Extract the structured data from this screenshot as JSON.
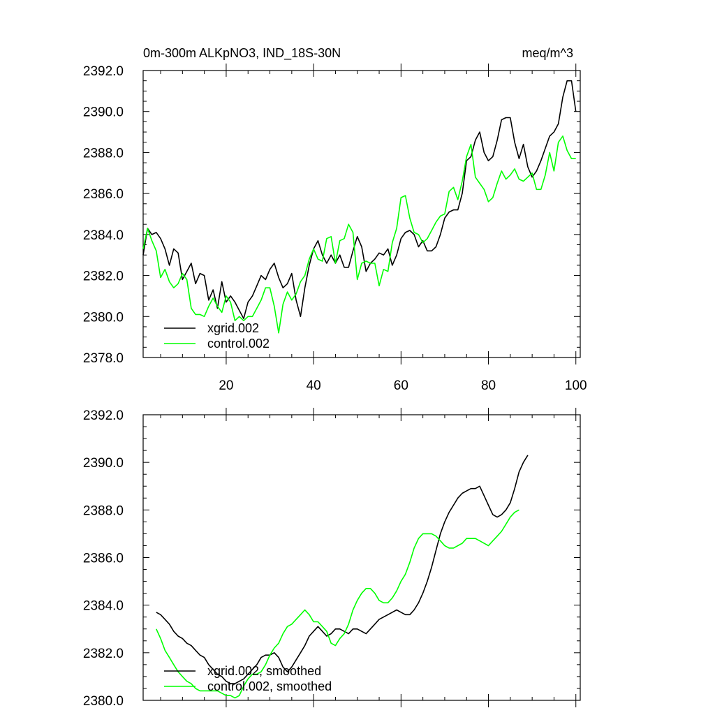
{
  "figure": {
    "title_left": "0m-300m ALKpNO3, IND_18S-30N",
    "title_right": "meq/m^3"
  },
  "colors": {
    "xgrid": "#000000",
    "control": "#00ff00",
    "axis": "#000000"
  },
  "chart_data": [
    {
      "type": "line",
      "title": "0m-300m ALKpNO3, IND_18S-30N",
      "units": "meq/m^3",
      "xlim": [
        1,
        101
      ],
      "ylim": [
        2378,
        2392
      ],
      "xticks": [
        20,
        40,
        60,
        80,
        100
      ],
      "xtick_labels": [
        "20",
        "40",
        "60",
        "80",
        "100"
      ],
      "yticks": [
        2378,
        2380,
        2382,
        2384,
        2386,
        2388,
        2390,
        2392
      ],
      "ytick_labels": [
        "2378.0",
        "2380.0",
        "2382.0",
        "2384.0",
        "2386.0",
        "2388.0",
        "2390.0",
        "2392.0"
      ],
      "legend_position": "bottom-left",
      "x_start": 1,
      "series": [
        {
          "name": "xgrid.002",
          "color": "#000000",
          "values": [
            2383.0,
            2384.3,
            2384.0,
            2384.1,
            2383.8,
            2383.3,
            2382.5,
            2383.3,
            2383.1,
            2381.8,
            2382.2,
            2382.6,
            2381.6,
            2382.1,
            2382.0,
            2380.8,
            2381.3,
            2380.4,
            2381.7,
            2380.7,
            2381.0,
            2380.7,
            2380.3,
            2379.9,
            2380.7,
            2381.0,
            2381.5,
            2382.0,
            2381.8,
            2382.3,
            2382.6,
            2381.9,
            2381.4,
            2381.6,
            2382.1,
            2380.8,
            2380.0,
            2381.4,
            2382.5,
            2383.3,
            2383.7,
            2383.0,
            2382.6,
            2383.0,
            2382.6,
            2383.0,
            2382.4,
            2382.4,
            2383.2,
            2383.9,
            2383.4,
            2382.2,
            2382.6,
            2382.8,
            2383.1,
            2383.0,
            2383.3,
            2382.5,
            2383.0,
            2383.8,
            2384.1,
            2384.2,
            2384.0,
            2383.4,
            2383.7,
            2383.2,
            2383.2,
            2383.4,
            2384.0,
            2384.8,
            2385.1,
            2385.2,
            2385.2,
            2386.0,
            2387.6,
            2387.8,
            2388.6,
            2389.0,
            2388.0,
            2387.6,
            2387.8,
            2388.6,
            2389.6,
            2389.7,
            2389.7,
            2388.5,
            2387.7,
            2388.4,
            2387.3,
            2386.8,
            2387.1,
            2387.6,
            2388.2,
            2388.8,
            2389.0,
            2389.4,
            2390.7,
            2391.5,
            2391.5,
            2390.0
          ]
        },
        {
          "name": "control.002",
          "color": "#00ff00",
          "values": [
            2383.3,
            2384.3,
            2383.7,
            2383.2,
            2381.9,
            2382.3,
            2381.7,
            2381.4,
            2381.6,
            2382.1,
            2381.8,
            2380.4,
            2380.1,
            2380.1,
            2380.0,
            2380.5,
            2380.9,
            2380.5,
            2380.2,
            2381.0,
            2380.7,
            2379.8,
            2380.0,
            2379.8,
            2380.0,
            2380.0,
            2380.4,
            2380.8,
            2381.4,
            2381.4,
            2380.5,
            2379.2,
            2380.6,
            2381.2,
            2380.8,
            2381.1,
            2381.7,
            2382.0,
            2382.8,
            2383.3,
            2382.8,
            2382.7,
            2383.8,
            2383.9,
            2382.6,
            2383.7,
            2383.8,
            2384.5,
            2384.1,
            2381.8,
            2382.6,
            2382.7,
            2382.6,
            2382.6,
            2381.5,
            2382.3,
            2382.2,
            2383.6,
            2384.3,
            2385.8,
            2385.9,
            2384.8,
            2384.1,
            2384.0,
            2383.6,
            2383.8,
            2384.2,
            2384.6,
            2384.9,
            2385.0,
            2386.1,
            2386.3,
            2385.7,
            2386.6,
            2387.8,
            2388.4,
            2386.8,
            2386.5,
            2386.2,
            2385.6,
            2385.8,
            2386.5,
            2387.1,
            2386.7,
            2386.9,
            2387.2,
            2386.7,
            2386.6,
            2386.8,
            2387.0,
            2386.2,
            2386.2,
            2386.9,
            2388.0,
            2387.1,
            2388.5,
            2388.8,
            2388.1,
            2387.7,
            2387.7
          ]
        }
      ]
    },
    {
      "type": "line",
      "title": "",
      "xlim": [
        1,
        101
      ],
      "ylim": [
        2380,
        2392
      ],
      "xticks": [
        20,
        40,
        60,
        80,
        100
      ],
      "yticks": [
        2380,
        2382,
        2384,
        2386,
        2388,
        2390,
        2392
      ],
      "ytick_labels": [
        "2380.0",
        "2382.0",
        "2384.0",
        "2386.0",
        "2388.0",
        "2390.0",
        "2392.0"
      ],
      "legend_position": "bottom-left",
      "x_start": 4,
      "series": [
        {
          "name": "xgrid.002, smoothed",
          "color": "#000000",
          "values": [
            2383.7,
            2383.6,
            2383.4,
            2383.2,
            2382.9,
            2382.7,
            2382.6,
            2382.4,
            2382.3,
            2382.1,
            2381.9,
            2381.8,
            2381.5,
            2381.3,
            2381.1,
            2381.0,
            2380.8,
            2380.7,
            2380.7,
            2380.8,
            2380.9,
            2381.1,
            2381.3,
            2381.5,
            2381.8,
            2381.9,
            2381.9,
            2382.0,
            2381.8,
            2381.4,
            2381.2,
            2381.4,
            2381.7,
            2382.0,
            2382.3,
            2382.7,
            2382.9,
            2383.1,
            2382.9,
            2382.7,
            2382.8,
            2383.0,
            2383.0,
            2382.9,
            2382.8,
            2383.0,
            2383.0,
            2382.9,
            2382.8,
            2383.0,
            2383.2,
            2383.4,
            2383.5,
            2383.6,
            2383.7,
            2383.8,
            2383.7,
            2383.6,
            2383.6,
            2383.8,
            2384.1,
            2384.5,
            2385.0,
            2385.6,
            2386.3,
            2387.0,
            2387.5,
            2387.9,
            2388.2,
            2388.5,
            2388.7,
            2388.8,
            2388.9,
            2388.9,
            2389.0,
            2388.6,
            2388.2,
            2387.8,
            2387.7,
            2387.8,
            2388.0,
            2388.3,
            2388.9,
            2389.6,
            2390.0,
            2390.3
          ]
        },
        {
          "name": "control.002, smoothed",
          "color": "#00ff00",
          "values": [
            2383.0,
            2382.6,
            2382.1,
            2381.8,
            2381.5,
            2381.2,
            2381.0,
            2380.8,
            2380.7,
            2380.5,
            2380.4,
            2380.4,
            2380.4,
            2380.4,
            2380.4,
            2380.3,
            2380.2,
            2380.2,
            2380.1,
            2380.2,
            2380.6,
            2380.9,
            2381.1,
            2381.1,
            2381.2,
            2381.5,
            2381.9,
            2382.2,
            2382.4,
            2382.8,
            2383.1,
            2383.2,
            2383.4,
            2383.6,
            2383.8,
            2383.6,
            2383.3,
            2383.3,
            2383.1,
            2382.9,
            2382.4,
            2382.3,
            2382.6,
            2382.8,
            2383.2,
            2383.8,
            2384.2,
            2384.5,
            2384.7,
            2384.7,
            2384.5,
            2384.2,
            2384.1,
            2384.1,
            2384.3,
            2384.6,
            2385.0,
            2385.3,
            2385.8,
            2386.4,
            2386.8,
            2387.0,
            2387.0,
            2387.0,
            2386.9,
            2386.7,
            2386.5,
            2386.4,
            2386.4,
            2386.5,
            2386.6,
            2386.8,
            2386.8,
            2386.8,
            2386.7,
            2386.6,
            2386.5,
            2386.7,
            2386.9,
            2387.1,
            2387.4,
            2387.7,
            2387.9,
            2388.0
          ]
        }
      ]
    }
  ]
}
